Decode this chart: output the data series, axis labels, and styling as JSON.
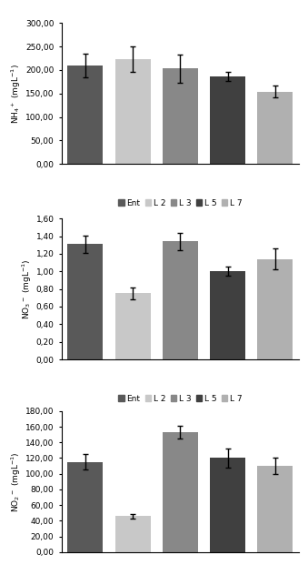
{
  "chart1": {
    "ylabel": "NH$_4$$^+$ (mgL$^{-1}$)",
    "ylim": [
      0,
      300
    ],
    "yticks": [
      0,
      50,
      100,
      150,
      200,
      250,
      300
    ],
    "ytick_labels": [
      "0,00",
      "50,00",
      "100,00",
      "150,00",
      "200,00",
      "250,00",
      "300,00"
    ],
    "values": [
      210,
      223,
      203,
      186,
      154
    ],
    "errors": [
      25,
      28,
      30,
      10,
      12
    ]
  },
  "chart2": {
    "ylabel": "NO$_3$$^-$ (mgL$^{-1}$)",
    "ylim": [
      0,
      1.6
    ],
    "yticks": [
      0,
      0.2,
      0.4,
      0.6,
      0.8,
      1.0,
      1.2,
      1.4,
      1.6
    ],
    "ytick_labels": [
      "0,00",
      "0,20",
      "0,40",
      "0,60",
      "0,80",
      "1,00",
      "1,20",
      "1,40",
      "1,60"
    ],
    "values": [
      1.31,
      0.75,
      1.34,
      1.0,
      1.14
    ],
    "errors": [
      0.1,
      0.07,
      0.1,
      0.05,
      0.12
    ]
  },
  "chart3": {
    "ylabel": "NO$_2$$^-$ (mgL$^{-1}$)",
    "ylim": [
      0,
      180
    ],
    "yticks": [
      0,
      20,
      40,
      60,
      80,
      100,
      120,
      140,
      160,
      180
    ],
    "ytick_labels": [
      "0,00",
      "20,00",
      "40,00",
      "60,00",
      "80,00",
      "100,00",
      "120,00",
      "140,00",
      "160,00",
      "180,00"
    ],
    "values": [
      115,
      46,
      153,
      120,
      110
    ],
    "errors": [
      10,
      3,
      8,
      12,
      10
    ]
  },
  "categories": [
    "Ent",
    "L 2",
    "L 3",
    "L 5",
    "L 7"
  ],
  "bar_colors": [
    "#595959",
    "#c8c8c8",
    "#888888",
    "#404040",
    "#b0b0b0"
  ],
  "legend_labels": [
    "Ent",
    "L 2",
    "L 3",
    "L 5",
    "L 7"
  ],
  "error_color": "black",
  "bar_width": 0.75
}
